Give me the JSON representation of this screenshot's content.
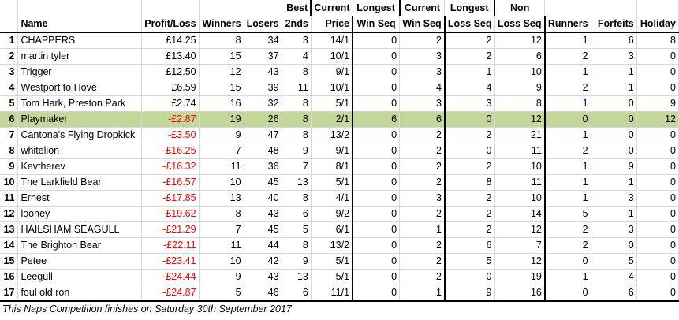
{
  "headers": {
    "name": "Name",
    "profit_loss": "Profit/Loss",
    "winners": "Winners",
    "losers": "Losers",
    "seconds": "2nds",
    "best_price": [
      "Best",
      "Price"
    ],
    "current_win_seq": [
      "Current",
      "Win Seq"
    ],
    "longest_win_seq": [
      "Longest",
      "Win Seq"
    ],
    "current_loss_seq": [
      "Current",
      "Loss Seq"
    ],
    "longest_loss_seq": [
      "Longest",
      "Loss Seq"
    ],
    "non_runners": [
      "Non",
      "Runners"
    ],
    "forfeits": "Forfeits",
    "holiday": "Holiday"
  },
  "rows": [
    {
      "rank": "1",
      "name": "CHAPPERS",
      "pl": "£14.25",
      "neg": false,
      "w": "8",
      "l": "34",
      "s": "3",
      "bp": "14/1",
      "cws": "0",
      "lws": "2",
      "cls": "2",
      "lls": "12",
      "nr": "1",
      "f": "6",
      "h": "8"
    },
    {
      "rank": "2",
      "name": "martin tyler",
      "pl": "£13.40",
      "neg": false,
      "w": "15",
      "l": "37",
      "s": "4",
      "bp": "10/1",
      "cws": "0",
      "lws": "3",
      "cls": "2",
      "lls": "6",
      "nr": "2",
      "f": "3",
      "h": "0"
    },
    {
      "rank": "3",
      "name": "Trigger",
      "pl": "£12.50",
      "neg": false,
      "w": "12",
      "l": "43",
      "s": "8",
      "bp": "9/1",
      "cws": "0",
      "lws": "3",
      "cls": "1",
      "lls": "10",
      "nr": "1",
      "f": "1",
      "h": "0"
    },
    {
      "rank": "4",
      "name": "Westport to Hove",
      "pl": "£6.59",
      "neg": false,
      "w": "15",
      "l": "39",
      "s": "11",
      "bp": "10/1",
      "cws": "0",
      "lws": "4",
      "cls": "4",
      "lls": "9",
      "nr": "2",
      "f": "1",
      "h": "0"
    },
    {
      "rank": "5",
      "name": "Tom Hark, Preston Park",
      "pl": "£2.74",
      "neg": false,
      "w": "16",
      "l": "32",
      "s": "8",
      "bp": "5/1",
      "cws": "0",
      "lws": "3",
      "cls": "3",
      "lls": "8",
      "nr": "1",
      "f": "0",
      "h": "9"
    },
    {
      "rank": "6",
      "name": "Playmaker",
      "pl": "-£2.87",
      "neg": true,
      "w": "19",
      "l": "26",
      "s": "8",
      "bp": "2/1",
      "cws": "6",
      "lws": "6",
      "cls": "0",
      "lls": "12",
      "nr": "0",
      "f": "0",
      "h": "12",
      "highlight": true
    },
    {
      "rank": "7",
      "name": "Cantona's Flying Dropkick",
      "pl": "-£3.50",
      "neg": true,
      "w": "9",
      "l": "47",
      "s": "8",
      "bp": "13/2",
      "cws": "0",
      "lws": "2",
      "cls": "2",
      "lls": "21",
      "nr": "1",
      "f": "0",
      "h": "0"
    },
    {
      "rank": "8",
      "name": "whitelion",
      "pl": "-£16.25",
      "neg": true,
      "w": "7",
      "l": "48",
      "s": "9",
      "bp": "9/1",
      "cws": "0",
      "lws": "2",
      "cls": "0",
      "lls": "11",
      "nr": "2",
      "f": "0",
      "h": "0"
    },
    {
      "rank": "9",
      "name": "Kevtherev",
      "pl": "-£16.32",
      "neg": true,
      "w": "11",
      "l": "36",
      "s": "7",
      "bp": "8/1",
      "cws": "0",
      "lws": "2",
      "cls": "2",
      "lls": "10",
      "nr": "1",
      "f": "9",
      "h": "0"
    },
    {
      "rank": "10",
      "name": "The Larkfield Bear",
      "pl": "-£16.57",
      "neg": true,
      "w": "10",
      "l": "45",
      "s": "13",
      "bp": "5/1",
      "cws": "0",
      "lws": "2",
      "cls": "8",
      "lls": "11",
      "nr": "1",
      "f": "1",
      "h": "0"
    },
    {
      "rank": "11",
      "name": "Ernest",
      "pl": "-£17.85",
      "neg": true,
      "w": "13",
      "l": "40",
      "s": "8",
      "bp": "4/1",
      "cws": "0",
      "lws": "3",
      "cls": "2",
      "lls": "10",
      "nr": "1",
      "f": "3",
      "h": "0"
    },
    {
      "rank": "12",
      "name": "looney",
      "pl": "-£19.62",
      "neg": true,
      "w": "8",
      "l": "43",
      "s": "6",
      "bp": "9/2",
      "cws": "0",
      "lws": "2",
      "cls": "2",
      "lls": "14",
      "nr": "5",
      "f": "1",
      "h": "0"
    },
    {
      "rank": "13",
      "name": "HAILSHAM SEAGULL",
      "pl": "-£21.29",
      "neg": true,
      "w": "7",
      "l": "45",
      "s": "5",
      "bp": "6/1",
      "cws": "0",
      "lws": "1",
      "cls": "2",
      "lls": "12",
      "nr": "2",
      "f": "3",
      "h": "0"
    },
    {
      "rank": "14",
      "name": "The Brighton Bear",
      "pl": "-£22.11",
      "neg": true,
      "w": "11",
      "l": "44",
      "s": "8",
      "bp": "13/2",
      "cws": "0",
      "lws": "2",
      "cls": "6",
      "lls": "7",
      "nr": "2",
      "f": "0",
      "h": "0"
    },
    {
      "rank": "15",
      "name": "Petee",
      "pl": "-£23.41",
      "neg": true,
      "w": "10",
      "l": "42",
      "s": "9",
      "bp": "5/1",
      "cws": "0",
      "lws": "2",
      "cls": "5",
      "lls": "12",
      "nr": "0",
      "f": "5",
      "h": "0"
    },
    {
      "rank": "16",
      "name": "Leegull",
      "pl": "-£24.44",
      "neg": true,
      "w": "9",
      "l": "43",
      "s": "13",
      "bp": "5/1",
      "cws": "0",
      "lws": "2",
      "cls": "0",
      "lls": "19",
      "nr": "1",
      "f": "4",
      "h": "0"
    },
    {
      "rank": "17",
      "name": "foul old ron",
      "pl": "-£24.87",
      "neg": true,
      "w": "5",
      "l": "46",
      "s": "6",
      "bp": "11/1",
      "cws": "0",
      "lws": "1",
      "cls": "9",
      "lls": "16",
      "nr": "0",
      "f": "6",
      "h": "0"
    }
  ],
  "footer": "This Naps Competition finishes on Saturday 30th September 2017",
  "colors": {
    "highlight": "#c4d79b",
    "negative": "#ff0000",
    "grid": "#d9d9d9"
  }
}
